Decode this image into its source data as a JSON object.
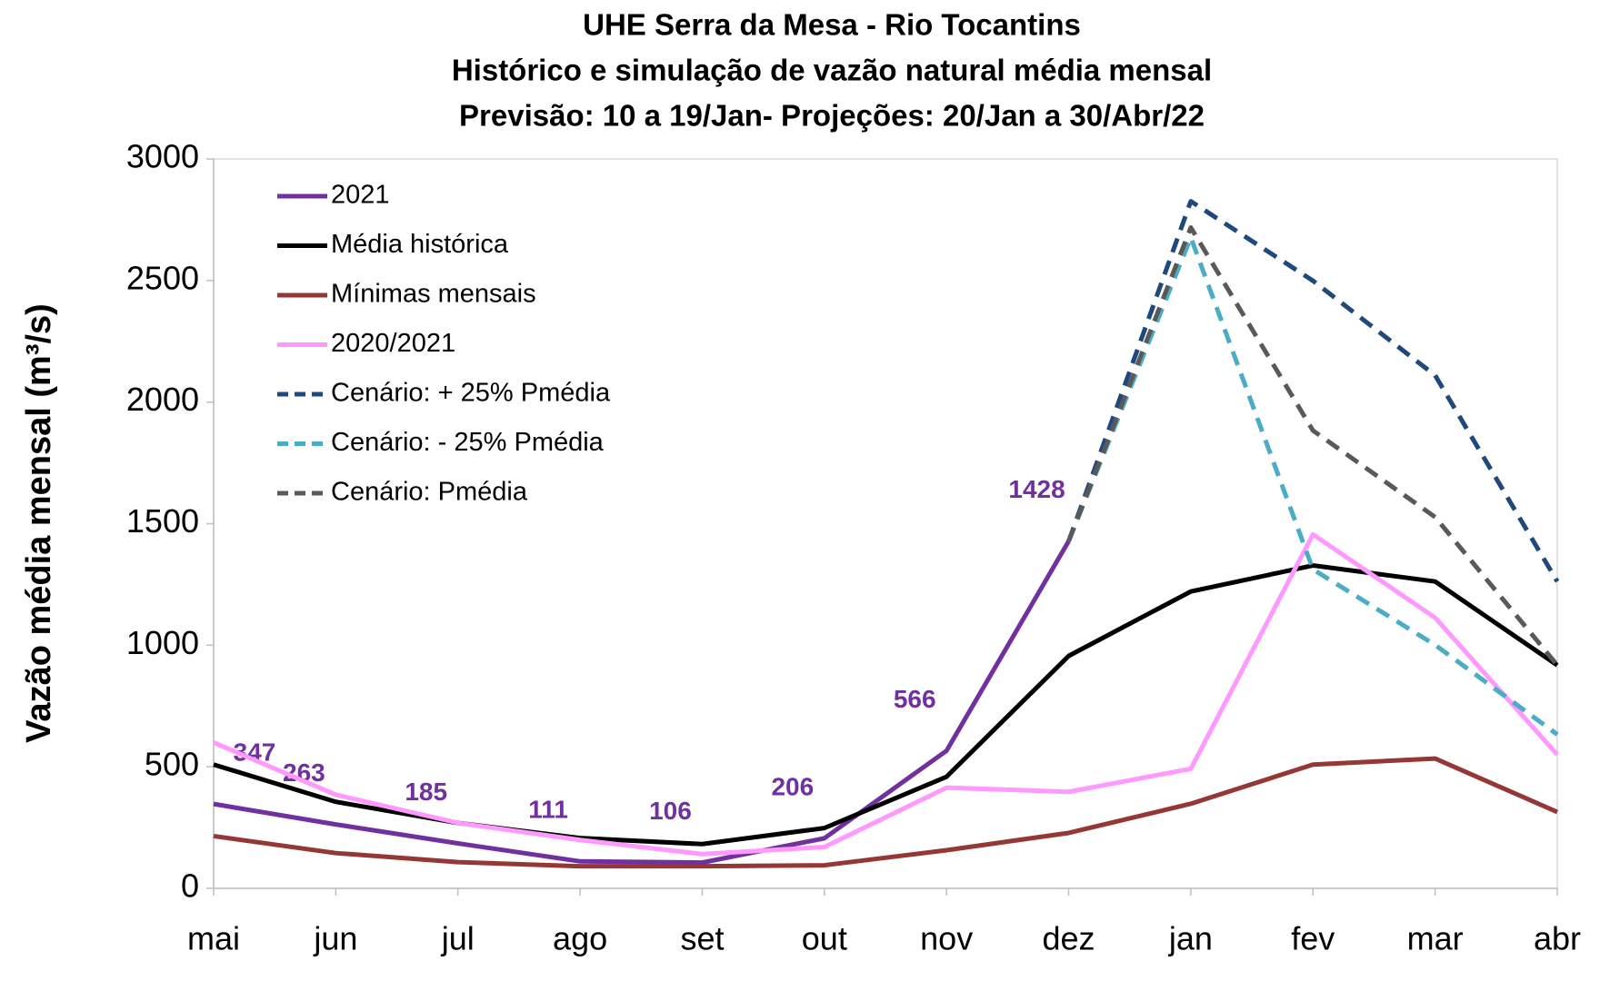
{
  "chart_data": {
    "type": "line",
    "title": [
      "UHE Serra da Mesa - Rio Tocantins",
      "Histórico e simulação de vazão natural média mensal",
      "Previsão: 10 a 19/Jan- Projeções:  20/Jan a 30/Abr/22"
    ],
    "y_label": "Vazão média mensal (m³/s)",
    "categories": [
      "mai",
      "jun",
      "jul",
      "ago",
      "set",
      "out",
      "nov",
      "dez",
      "jan",
      "fev",
      "mar",
      "abr"
    ],
    "ylim": [
      0,
      3000
    ],
    "yticks": [
      0,
      500,
      1000,
      1500,
      2000,
      2500,
      3000
    ],
    "grid": false,
    "legend": "top-left",
    "series": [
      {
        "name": "2021",
        "color": "#7030a0",
        "dashed": false,
        "data_labels": true,
        "values": [
          347,
          263,
          185,
          111,
          106,
          206,
          566,
          1428,
          null,
          null,
          null,
          null
        ]
      },
      {
        "name": "Média histórica",
        "color": "#000000",
        "dashed": false,
        "values": [
          509,
          356,
          269,
          207,
          182,
          248,
          459,
          956,
          1221,
          1328,
          1262,
          918
        ]
      },
      {
        "name": "Mínimas mensais",
        "color": "#953735",
        "dashed": false,
        "values": [
          215,
          145,
          108,
          91,
          91,
          95,
          157,
          228,
          348,
          509,
          534,
          314
        ]
      },
      {
        "name": "2020/2021",
        "color": "#ff99ff",
        "dashed": false,
        "values": [
          600,
          385,
          269,
          199,
          141,
          170,
          414,
          397,
          492,
          1456,
          1113,
          550
        ]
      },
      {
        "name": "Cenário: + 25% Pmédia",
        "color": "#1f497d",
        "dashed": true,
        "values": [
          null,
          null,
          null,
          null,
          null,
          null,
          null,
          1428,
          2826,
          2499,
          2110,
          1262
        ]
      },
      {
        "name": "Cenário: - 25% Pmédia",
        "color": "#4bacc6",
        "dashed": true,
        "values": [
          null,
          null,
          null,
          null,
          null,
          null,
          null,
          1428,
          2677,
          1312,
          1001,
          633
        ]
      },
      {
        "name": "Cenário: Pmédia",
        "color": "#595959",
        "dashed": true,
        "values": [
          null,
          null,
          null,
          null,
          null,
          null,
          null,
          1428,
          2718,
          1883,
          1527,
          918
        ]
      }
    ]
  }
}
